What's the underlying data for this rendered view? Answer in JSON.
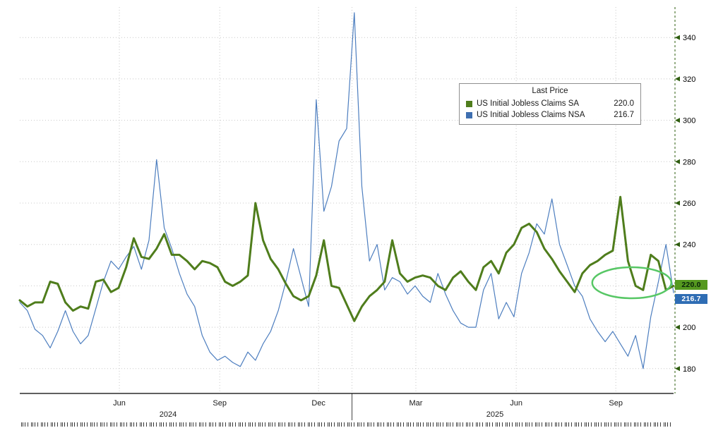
{
  "window": {
    "background": "#ffffff"
  },
  "legend": {
    "title": "Last Price",
    "items": [
      {
        "label": "US Initial Jobless Claims SA",
        "value": "220.0",
        "color": "#4f7d1c"
      },
      {
        "label": "US Initial Jobless Claims NSA",
        "value": "216.7",
        "color": "#3e6fb0"
      }
    ]
  },
  "price_tags": [
    {
      "text": "220.0",
      "value": 220.0,
      "bg": "#55991f",
      "fg": "#09230a"
    },
    {
      "text": "216.7",
      "value": 216.7,
      "bg": "#2f6db4",
      "fg": "#ffffff"
    }
  ],
  "chart_data": {
    "type": "line",
    "title": "",
    "x_unit": "week",
    "grid": "dotted",
    "grid_color": "#c8c8c8",
    "axis_color": "#2e5c0e",
    "legend_position": "upper-right-center",
    "ylim": [
      168,
      352
    ],
    "yticks": [
      180,
      200,
      220,
      240,
      260,
      280,
      300,
      320,
      340
    ],
    "x_ticks": [
      {
        "label": "Jun",
        "i": 13.1
      },
      {
        "label": "Sep",
        "i": 26.3
      },
      {
        "label": "Dec",
        "i": 39.3
      },
      {
        "label": "Mar",
        "i": 52.1
      },
      {
        "label": "Jun",
        "i": 65.3
      },
      {
        "label": "Sep",
        "i": 78.4
      }
    ],
    "year_labels": [
      {
        "label": "2024",
        "i": 19.5
      },
      {
        "label": "2025",
        "i": 62.5
      }
    ],
    "year_separator_i": 43.7,
    "x": [
      "2024-03-01",
      "2024-03-08",
      "2024-03-15",
      "2024-03-22",
      "2024-03-29",
      "2024-04-05",
      "2024-04-12",
      "2024-04-19",
      "2024-04-26",
      "2024-05-03",
      "2024-05-10",
      "2024-05-17",
      "2024-05-24",
      "2024-05-31",
      "2024-06-07",
      "2024-06-14",
      "2024-06-21",
      "2024-06-28",
      "2024-07-05",
      "2024-07-12",
      "2024-07-19",
      "2024-07-26",
      "2024-08-02",
      "2024-08-09",
      "2024-08-16",
      "2024-08-23",
      "2024-08-30",
      "2024-09-06",
      "2024-09-13",
      "2024-09-20",
      "2024-09-27",
      "2024-10-04",
      "2024-10-11",
      "2024-10-18",
      "2024-10-25",
      "2024-11-01",
      "2024-11-08",
      "2024-11-15",
      "2024-11-22",
      "2024-11-29",
      "2024-12-06",
      "2024-12-13",
      "2024-12-20",
      "2024-12-27",
      "2025-01-03",
      "2025-01-10",
      "2025-01-17",
      "2025-01-24",
      "2025-01-31",
      "2025-02-07",
      "2025-02-14",
      "2025-02-21",
      "2025-02-28",
      "2025-03-07",
      "2025-03-14",
      "2025-03-21",
      "2025-03-28",
      "2025-04-04",
      "2025-04-11",
      "2025-04-18",
      "2025-04-25",
      "2025-05-02",
      "2025-05-09",
      "2025-05-16",
      "2025-05-23",
      "2025-05-30",
      "2025-06-06",
      "2025-06-13",
      "2025-06-20",
      "2025-06-27",
      "2025-07-04",
      "2025-07-11",
      "2025-07-18",
      "2025-07-25",
      "2025-08-01",
      "2025-08-08",
      "2025-08-15",
      "2025-08-22",
      "2025-08-29",
      "2025-09-05",
      "2025-09-12",
      "2025-09-19",
      "2025-09-26",
      "2025-10-03",
      "2025-10-10",
      "2025-10-17",
      "2025-10-24"
    ],
    "series": [
      {
        "name": "US Initial Jobless Claims SA",
        "color": "#4f7d1c",
        "line_width": 3,
        "last_price": "220.0",
        "values": [
          213,
          210,
          212,
          212,
          222,
          221,
          212,
          208,
          210,
          209,
          222,
          223,
          217,
          219,
          229,
          243,
          234,
          233,
          238,
          245,
          235,
          235,
          232,
          228,
          232,
          231,
          229,
          222,
          220,
          222,
          225,
          260,
          242,
          233,
          228,
          221,
          215,
          213,
          215,
          225,
          242,
          220,
          219,
          211,
          203,
          210,
          215,
          218,
          222,
          242,
          226,
          222,
          224,
          225,
          224,
          220,
          218,
          224,
          227,
          222,
          218,
          229,
          232,
          226,
          236,
          240,
          248,
          250,
          246,
          238,
          233,
          227,
          222,
          217,
          226,
          230,
          232,
          235,
          237,
          263,
          232,
          220,
          218,
          235,
          232,
          218,
          220
        ]
      },
      {
        "name": "US Initial Jobless Claims NSA",
        "color": "#4d7ebf",
        "line_width": 1.2,
        "last_price": "216.7",
        "values": [
          212,
          208,
          199,
          196,
          190,
          198,
          208,
          198,
          192,
          196,
          209,
          222,
          232,
          228,
          234,
          239,
          228,
          242,
          281,
          248,
          238,
          226,
          216,
          210,
          196,
          188,
          184,
          186,
          183,
          181,
          188,
          184,
          192,
          198,
          208,
          222,
          238,
          224,
          210,
          310,
          256,
          268,
          290,
          296,
          352,
          268,
          232,
          240,
          218,
          224,
          222,
          216,
          220,
          215,
          212,
          226,
          216,
          208,
          202,
          200,
          200,
          218,
          226,
          204,
          212,
          205,
          226,
          236,
          250,
          245,
          262,
          240,
          230,
          220,
          215,
          204,
          198,
          193,
          198,
          192,
          186,
          196,
          180,
          205,
          222,
          240,
          216.7
        ]
      }
    ],
    "annotation": {
      "type": "ellipse",
      "center_i": 80.5,
      "center_value": 221.5,
      "rx_weeks": 5.2,
      "ry_value": 7.5,
      "color": "#57c765"
    }
  }
}
